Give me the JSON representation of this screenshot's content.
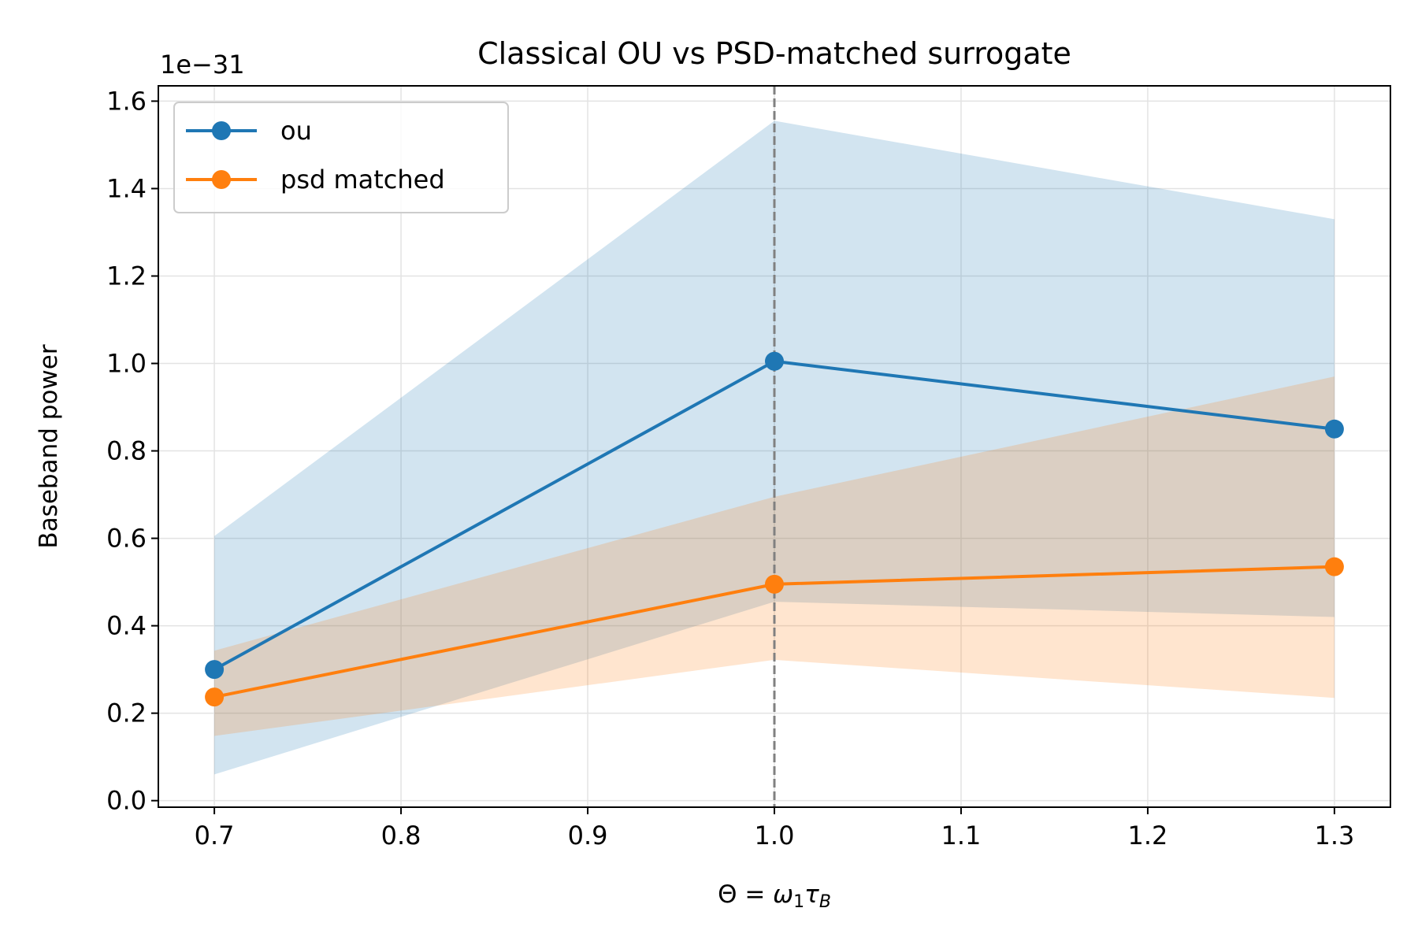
{
  "chart_data": {
    "type": "line",
    "title": "Classical OU vs PSD-matched surrogate",
    "xlabel_parts": {
      "lhs": "Θ",
      "eq": " = ",
      "omega": "ω",
      "omega_sub": "1",
      "tau": "τ",
      "tau_sub": "B"
    },
    "ylabel": "Baseband power",
    "y_scale_label": "1e−31",
    "x_ticks": [
      "0.7",
      "0.8",
      "0.9",
      "1.0",
      "1.1",
      "1.2",
      "1.3"
    ],
    "y_ticks": [
      "0.0",
      "0.2",
      "0.4",
      "0.6",
      "0.8",
      "1.0",
      "1.2",
      "1.4",
      "1.6"
    ],
    "x_tick_values": [
      0.7,
      0.8,
      0.9,
      1.0,
      1.1,
      1.2,
      1.3
    ],
    "y_tick_values": [
      0.0,
      0.2,
      0.4,
      0.6,
      0.8,
      1.0,
      1.2,
      1.4,
      1.6
    ],
    "xlim": [
      0.67,
      1.33
    ],
    "ylim": [
      -0.015,
      1.635
    ],
    "grid": true,
    "legend_position": "upper-left",
    "vline": {
      "x": 1.0,
      "color": "#808080",
      "style": "dashed"
    },
    "x": [
      0.7,
      1.0,
      1.3
    ],
    "series": [
      {
        "name": "ou",
        "color": "#1f77b4",
        "values": [
          0.3,
          1.005,
          0.85
        ],
        "band_lower": [
          0.06,
          0.455,
          0.42
        ],
        "band_upper": [
          0.605,
          1.555,
          1.33
        ]
      },
      {
        "name": "psd matched",
        "color": "#ff7f0e",
        "values": [
          0.237,
          0.495,
          0.535
        ],
        "band_lower": [
          0.148,
          0.322,
          0.235
        ],
        "band_upper": [
          0.343,
          0.695,
          0.97
        ]
      }
    ]
  }
}
